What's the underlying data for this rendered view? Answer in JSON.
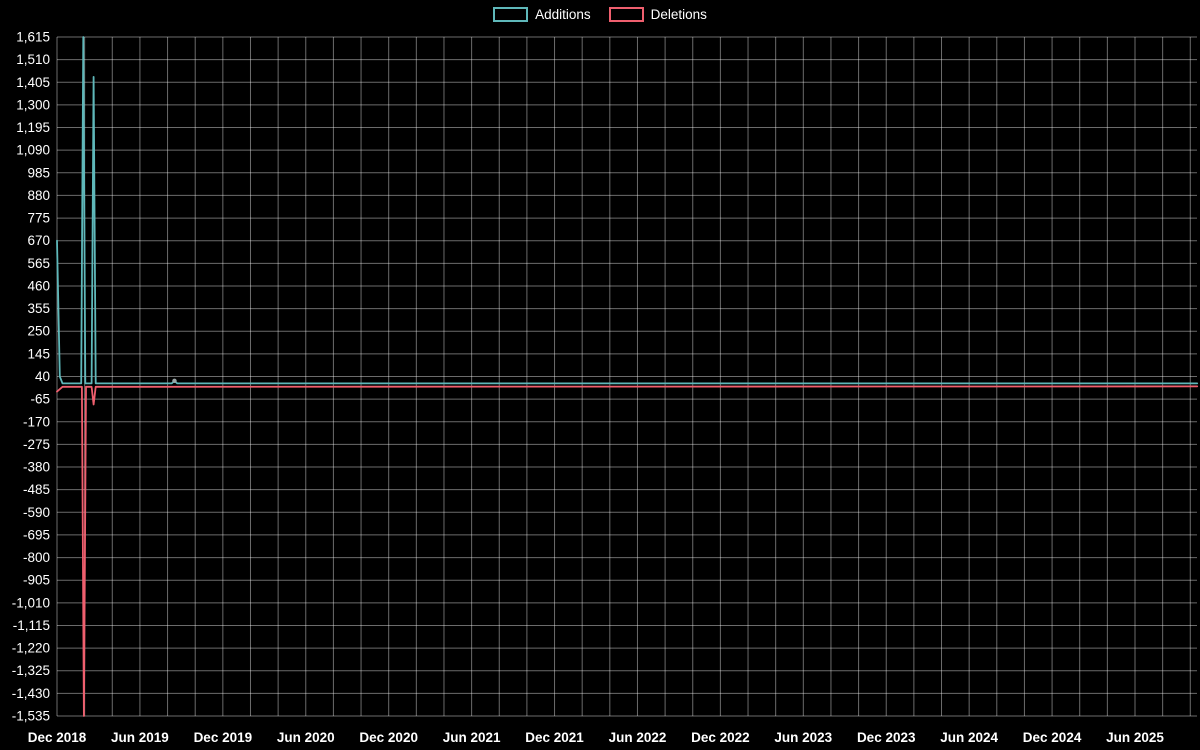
{
  "chart_data": {
    "type": "line",
    "title": "",
    "legend_items": [
      {
        "label": "Additions",
        "color": "#5fb8ba"
      },
      {
        "label": "Deletions",
        "color": "#ef5f6e"
      }
    ],
    "background_color": "#000000",
    "text_color": "#ffffff",
    "gridline_color": "rgba(255,255,255,0.42)",
    "legend_position": "top-center",
    "grid": true,
    "x_axis": {
      "tick_labels": [
        "Dec 2018",
        "Jun 2019",
        "Dec 2019",
        "Jun 2020",
        "Dec 2020",
        "Jun 2021",
        "Dec 2021",
        "Jun 2022",
        "Dec 2022",
        "Jun 2023",
        "Dec 2023",
        "Jun 2024",
        "Dec 2024",
        "Jun 2025"
      ],
      "tick_interval_months": 6,
      "gridline_interval_months": 2,
      "domain_months": [
        0,
        82.5
      ]
    },
    "y_axis": {
      "min": -1535,
      "max": 1615,
      "tick_step": 105,
      "tick_labels": [
        "1,615",
        "1,510",
        "1,405",
        "1,300",
        "1,195",
        "1,090",
        "985",
        "880",
        "775",
        "670",
        "565",
        "460",
        "355",
        "250",
        "145",
        "40",
        "-65",
        "-170",
        "-275",
        "-380",
        "-485",
        "-590",
        "-695",
        "-800",
        "-905",
        "-1,010",
        "-1,115",
        "-1,220",
        "-1,325",
        "-1,430",
        "-1,535"
      ],
      "tick_values": [
        1615,
        1510,
        1405,
        1300,
        1195,
        1090,
        985,
        880,
        775,
        670,
        565,
        460,
        355,
        250,
        145,
        40,
        -65,
        -170,
        -275,
        -380,
        -485,
        -590,
        -695,
        -800,
        -905,
        -1010,
        -1115,
        -1220,
        -1325,
        -1430,
        -1535
      ]
    },
    "series": [
      {
        "name": "Additions",
        "color": "#5fb8ba",
        "points": [
          [
            0,
            670
          ],
          [
            0.2,
            40
          ],
          [
            0.4,
            8
          ],
          [
            1.75,
            8
          ],
          [
            1.9,
            1615
          ],
          [
            2.05,
            8
          ],
          [
            2.5,
            8
          ],
          [
            2.65,
            1430
          ],
          [
            2.8,
            8
          ],
          [
            8.3,
            8
          ],
          [
            8.5,
            20
          ],
          [
            8.7,
            8
          ],
          [
            82.5,
            8
          ]
        ],
        "markers": [
          [
            8.5,
            20
          ]
        ]
      },
      {
        "name": "Deletions",
        "color": "#ef5f6e",
        "points": [
          [
            0,
            -30
          ],
          [
            0.4,
            -8
          ],
          [
            1.8,
            -8
          ],
          [
            1.95,
            -1535
          ],
          [
            2.1,
            -8
          ],
          [
            2.5,
            -8
          ],
          [
            2.65,
            -90
          ],
          [
            2.8,
            -8
          ],
          [
            82.5,
            -6
          ]
        ],
        "markers": []
      }
    ]
  }
}
